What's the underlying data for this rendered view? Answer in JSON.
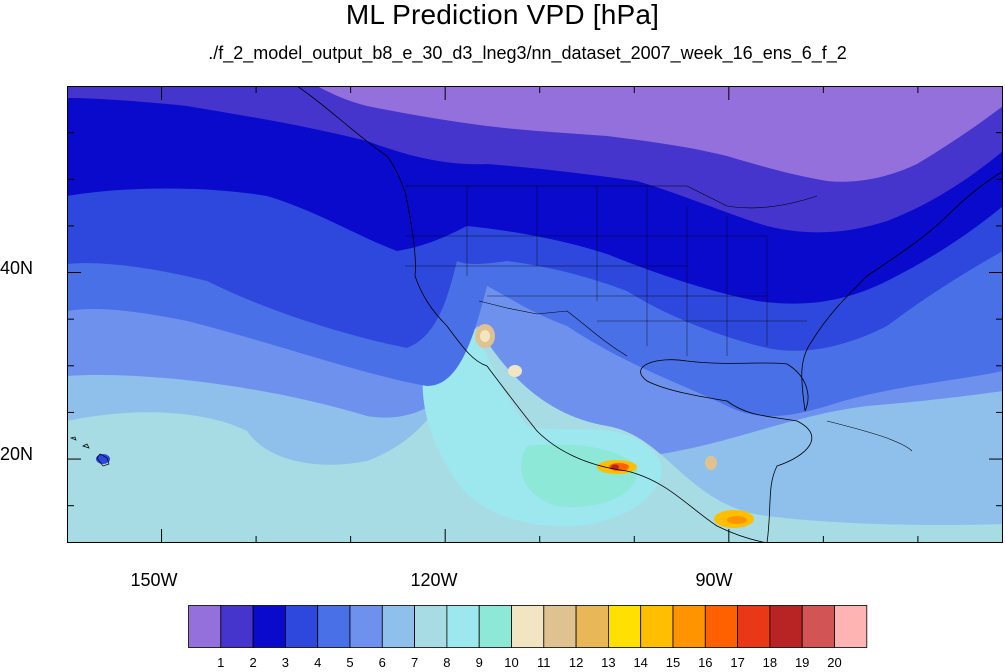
{
  "title": "ML Prediction VPD [hPa]",
  "subtitle": "./f_2_model_output_b8_e_30_d3_lneg3/nn_dataset_2007_week_16_ens_6_f_2",
  "map": {
    "projection": "cylindrical-equidistant",
    "lon_range": [
      -160,
      -61
    ],
    "lat_range": [
      11,
      60
    ],
    "lat_tick_labels": [
      {
        "lat": 40,
        "label": "40N"
      },
      {
        "lat": 20,
        "label": "20N"
      }
    ],
    "lon_tick_labels": [
      {
        "lon": -150,
        "label": "150W"
      },
      {
        "lon": -120,
        "label": "120W"
      },
      {
        "lon": -90,
        "label": "90W"
      }
    ],
    "lat_ticks": [
      15,
      20,
      25,
      30,
      35,
      40,
      45,
      50,
      55
    ],
    "lon_ticks": [
      -150,
      -140,
      -130,
      -120,
      -110,
      -100,
      -90,
      -80,
      -70
    ]
  },
  "colorbar": {
    "labels": [
      "1",
      "2",
      "3",
      "4",
      "5",
      "6",
      "7",
      "8",
      "9",
      "10",
      "11",
      "12",
      "13",
      "14",
      "15",
      "16",
      "17",
      "18",
      "19",
      "20"
    ],
    "colors": [
      "#9370db",
      "#4535cc",
      "#0a0acc",
      "#2e48dd",
      "#4a70e8",
      "#6f91ee",
      "#8fc0ec",
      "#a8dce4",
      "#9ce8ee",
      "#8ee8d8",
      "#f2e6c2",
      "#e0c290",
      "#e8b858",
      "#ffe000",
      "#ffbe00",
      "#ff9400",
      "#ff6000",
      "#e83818",
      "#b82424",
      "#d25454",
      "#ffb4b4"
    ]
  }
}
